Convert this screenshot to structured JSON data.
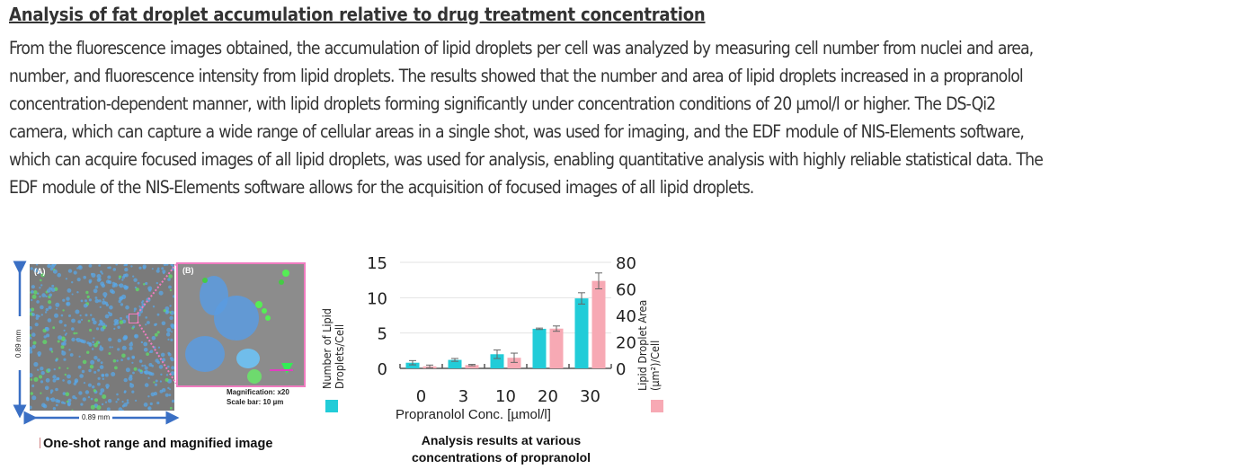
{
  "heading": "Analysis of fat droplet accumulation relative to drug treatment concentration",
  "paragraph_lines": [
    "From the fluorescence images obtained, the accumulation of lipid droplets per cell was analyzed by measuring cell number from nuclei and area,",
    "number, and fluorescence intensity from lipid droplets. The results showed that the number and area of lipid droplets increased in a propranolol",
    "concentration-dependent manner, with lipid droplets forming significantly under concentration conditions of 20 µmol/l or higher. The DS-Qi2",
    "camera, which can capture a wide range of cellular areas in a single shot, was used for imaging, and the EDF module of NIS-Elements software,",
    "which can acquire focused images of all lipid droplets, was used for analysis, enabling quantitative analysis with highly reliable statistical data. The",
    "EDF module of the NIS-Elements software allows for the acquisition of focused images of all lipid droplets."
  ],
  "figure_left": {
    "panel_a_label": "(A)",
    "panel_b_label": "(B)",
    "dimension_vertical": "0.89 mm",
    "dimension_horizontal": "0.89 mm",
    "magnification": "Magnification: x20",
    "scale_bar": "Scale bar: 10 µm",
    "caption": "One-shot range and magnified image"
  },
  "figure_right": {
    "caption_line1": "Analysis results at various",
    "caption_line2": "concentrations of propranolol"
  },
  "colors": {
    "cyan_series": "#22ccd8",
    "pink_series": "#f7a9b4",
    "highlight_border": "#f07cc0",
    "arrow_blue": "#3a6fc4"
  },
  "chart_data": {
    "type": "bar",
    "title": "",
    "categories": [
      "0",
      "3",
      "10",
      "20",
      "30"
    ],
    "xlabel": "Propranolol Conc. [µmol/l]",
    "ylabel": "Number of Lipid Droplets/Cell",
    "y2label": "Lipid Droplet Area (µm²)/Cell",
    "ylim": [
      0,
      15
    ],
    "y2lim": [
      0,
      80
    ],
    "yticks": [
      "0",
      "5",
      "10",
      "15"
    ],
    "y2ticks": [
      "0",
      "20",
      "40",
      "60",
      "80"
    ],
    "grid": true,
    "legend": "beside axis labels",
    "series": [
      {
        "name": "Number of Lipid Droplets/Cell",
        "axis": "left",
        "color": "#22ccd8",
        "values": [
          0.8,
          1.2,
          2.0,
          5.6,
          9.9
        ],
        "errors": [
          0.3,
          0.2,
          0.6,
          0.1,
          0.8
        ]
      },
      {
        "name": "Lipid Droplet Area (µm²)/Cell",
        "axis": "right",
        "color": "#f7a9b4",
        "values": [
          1.5,
          2.5,
          8,
          30,
          66
        ],
        "errors": [
          1,
          0.5,
          3.5,
          2,
          6
        ]
      }
    ]
  }
}
